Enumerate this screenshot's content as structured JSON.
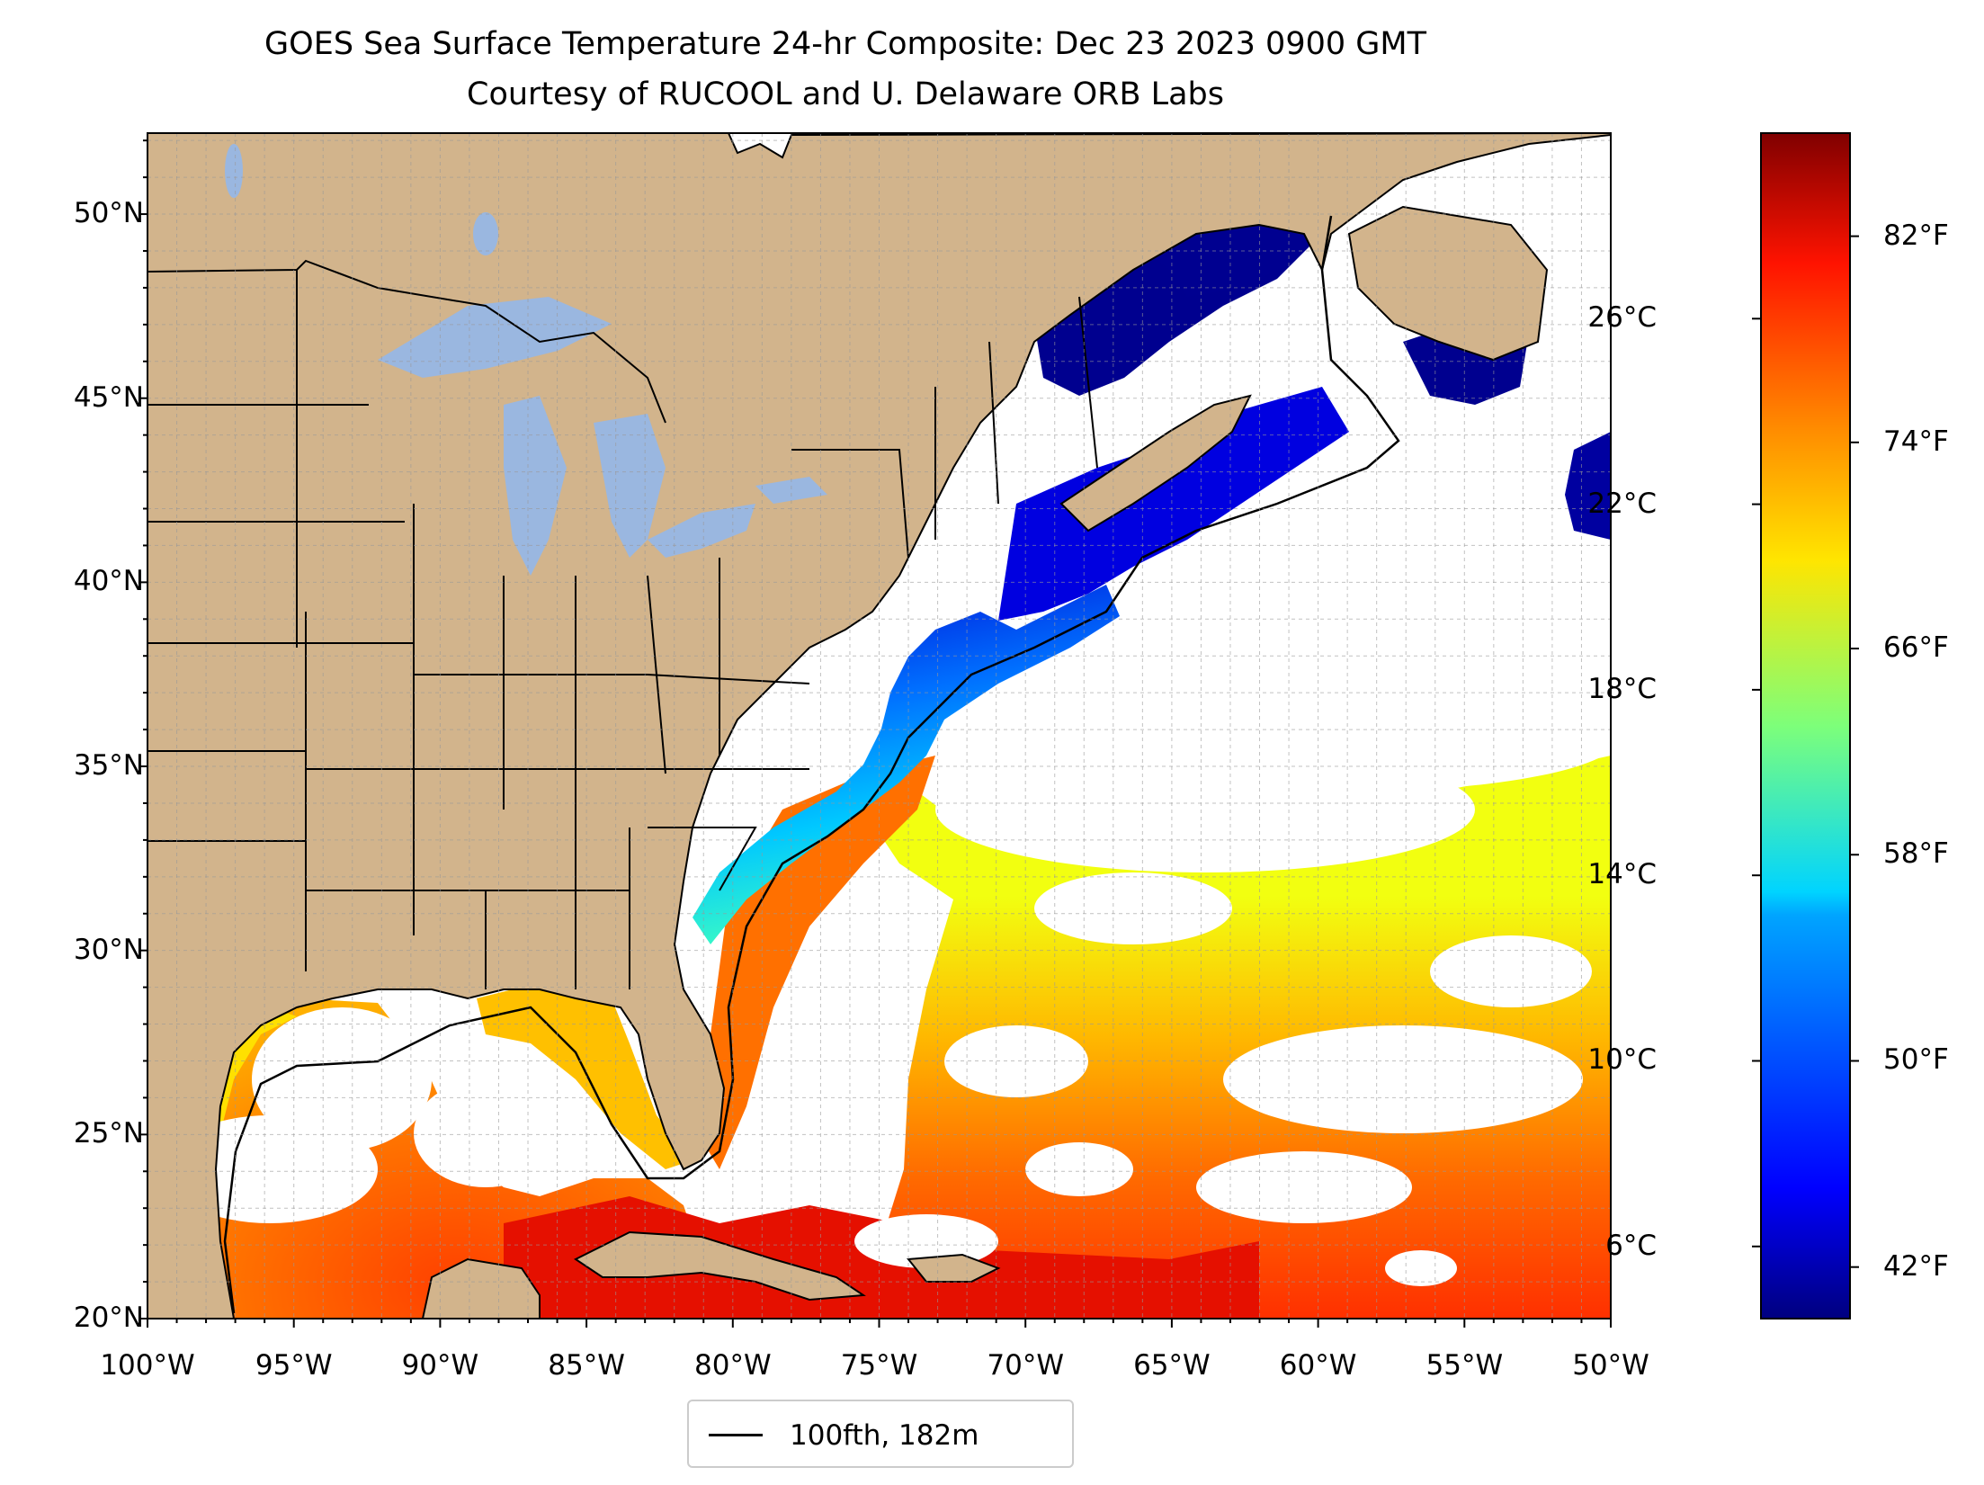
{
  "title": {
    "line1": "GOES Sea Surface Temperature 24-hr Composite: Dec 23 2023 0900 GMT",
    "line2": "Courtesy of RUCOOL and U. Delaware ORB Labs"
  },
  "map": {
    "lon_range": [
      -100,
      -50
    ],
    "lat_range": [
      20,
      52.2
    ],
    "lat_ticks": [
      {
        "value": 50,
        "label": "50°N"
      },
      {
        "value": 45,
        "label": "45°N"
      },
      {
        "value": 40,
        "label": "40°N"
      },
      {
        "value": 35,
        "label": "35°N"
      },
      {
        "value": 30,
        "label": "30°N"
      },
      {
        "value": 25,
        "label": "25°N"
      },
      {
        "value": 20,
        "label": "20°N"
      }
    ],
    "lon_ticks": [
      {
        "value": -100,
        "label": "100°W"
      },
      {
        "value": -95,
        "label": "95°W"
      },
      {
        "value": -90,
        "label": "90°W"
      },
      {
        "value": -85,
        "label": "85°W"
      },
      {
        "value": -80,
        "label": "80°W"
      },
      {
        "value": -75,
        "label": "75°W"
      },
      {
        "value": -70,
        "label": "70°W"
      },
      {
        "value": -65,
        "label": "65°W"
      },
      {
        "value": -60,
        "label": "60°W"
      },
      {
        "value": -55,
        "label": "55°W"
      },
      {
        "value": -50,
        "label": "50°W"
      }
    ],
    "gridlines": "dashed, every 1 degree",
    "land_color": "#d2b48c",
    "lake_color": "#9ab7e0",
    "missing_data_color": "#ffffff"
  },
  "colorbar": {
    "colormap": "jet",
    "range_f": [
      40,
      86
    ],
    "fahrenheit_ticks": [
      {
        "value": 42,
        "label": "42°F"
      },
      {
        "value": 50,
        "label": "50°F"
      },
      {
        "value": 58,
        "label": "58°F"
      },
      {
        "value": 66,
        "label": "66°F"
      },
      {
        "value": 74,
        "label": "74°F"
      },
      {
        "value": 82,
        "label": "82°F"
      }
    ],
    "celsius_ticks": [
      {
        "value": 6,
        "label": "6°C"
      },
      {
        "value": 10,
        "label": "10°C"
      },
      {
        "value": 14,
        "label": "14°C"
      },
      {
        "value": 18,
        "label": "18°C"
      },
      {
        "value": 22,
        "label": "22°C"
      },
      {
        "value": 26,
        "label": "26°C"
      }
    ]
  },
  "legend": {
    "label": "100fth, 182m",
    "line_color": "#000000"
  }
}
